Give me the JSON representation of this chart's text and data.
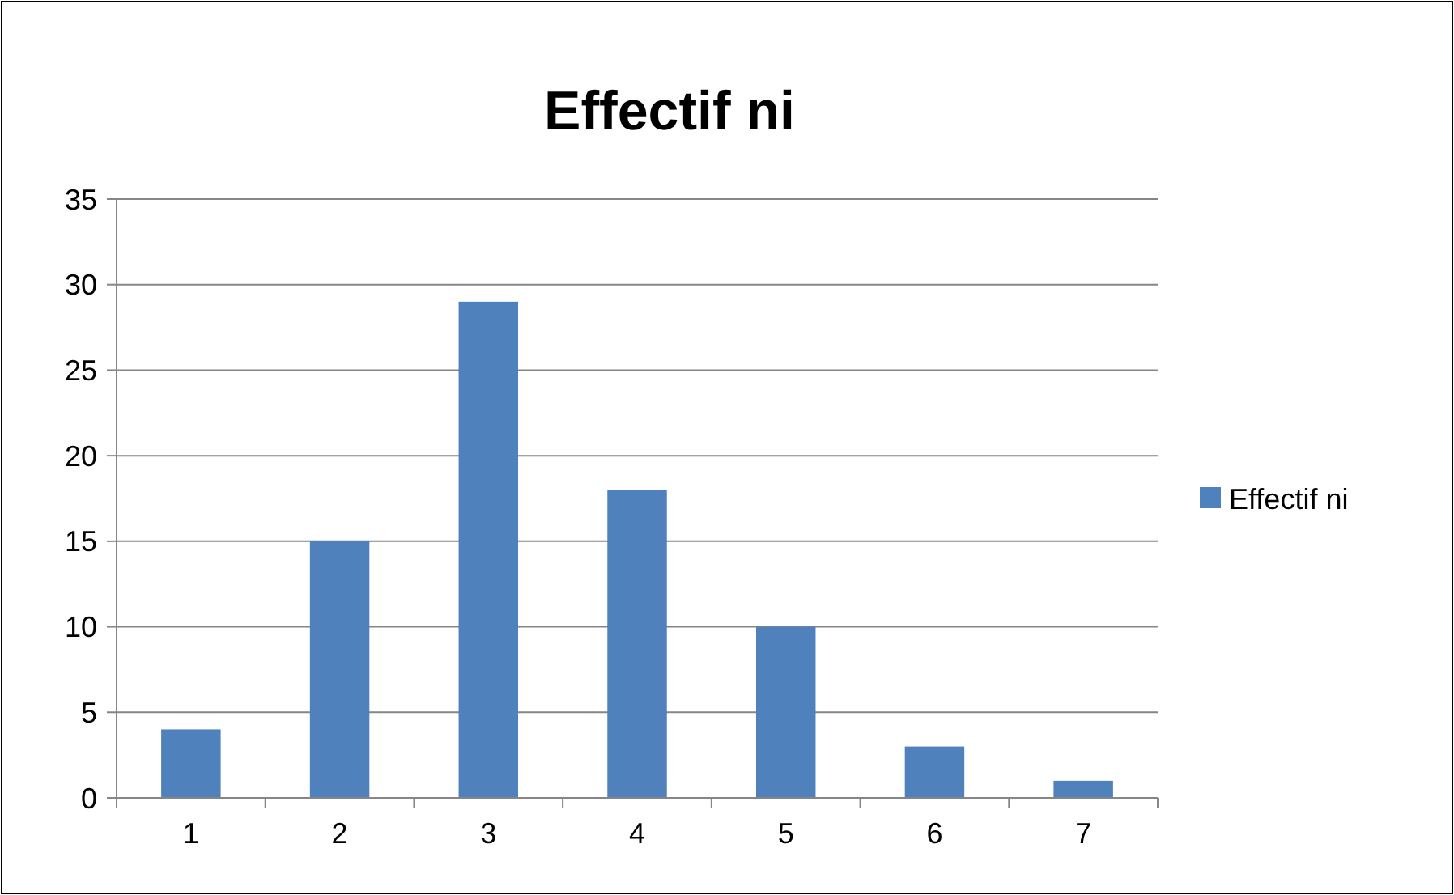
{
  "chart_data": {
    "type": "bar",
    "title": "Effectif ni",
    "categories": [
      "1",
      "2",
      "3",
      "4",
      "5",
      "6",
      "7"
    ],
    "series": [
      {
        "name": "Effectif ni",
        "color": "#4f81bd",
        "values": [
          4,
          15,
          29,
          18,
          10,
          3,
          1
        ]
      }
    ],
    "ylim": [
      0,
      35
    ],
    "yticks": [
      0,
      5,
      10,
      15,
      20,
      25,
      30,
      35
    ],
    "grid": "y",
    "legend": "right"
  }
}
